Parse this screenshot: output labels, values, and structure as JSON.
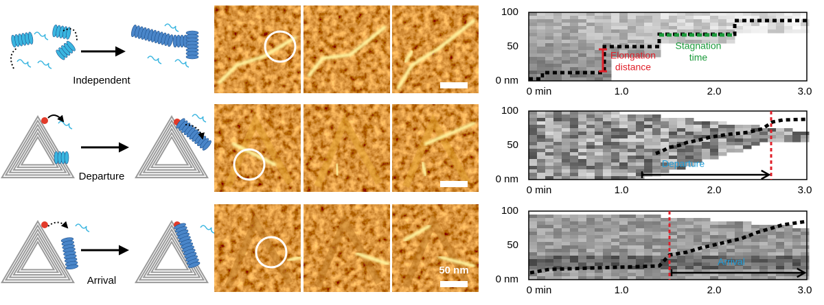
{
  "panels": [
    {
      "label": "Independent",
      "kymograph": {
        "annotations": [
          {
            "lines": [
              "Elongation",
              "distance"
            ],
            "color": "#e0202a"
          },
          {
            "lines": [
              "Stagnation",
              "time"
            ],
            "color": "#1a9a3a"
          }
        ]
      }
    },
    {
      "label": "Departure",
      "kymograph": {
        "annotations": [
          {
            "lines": [
              "Departure"
            ],
            "color": "#1f9bd6"
          }
        ]
      }
    },
    {
      "label": "Arrival",
      "kymograph": {
        "annotations": [
          {
            "lines": [
              "Arrival"
            ],
            "color": "#1f9bd6"
          }
        ]
      }
    }
  ],
  "scale_bar_label": "50 nm",
  "kymograph_axes": {
    "yticks": [
      "100",
      "50",
      "0 nm"
    ],
    "xticks": [
      "0 min",
      "1.0",
      "2.0",
      "3.0"
    ]
  }
}
